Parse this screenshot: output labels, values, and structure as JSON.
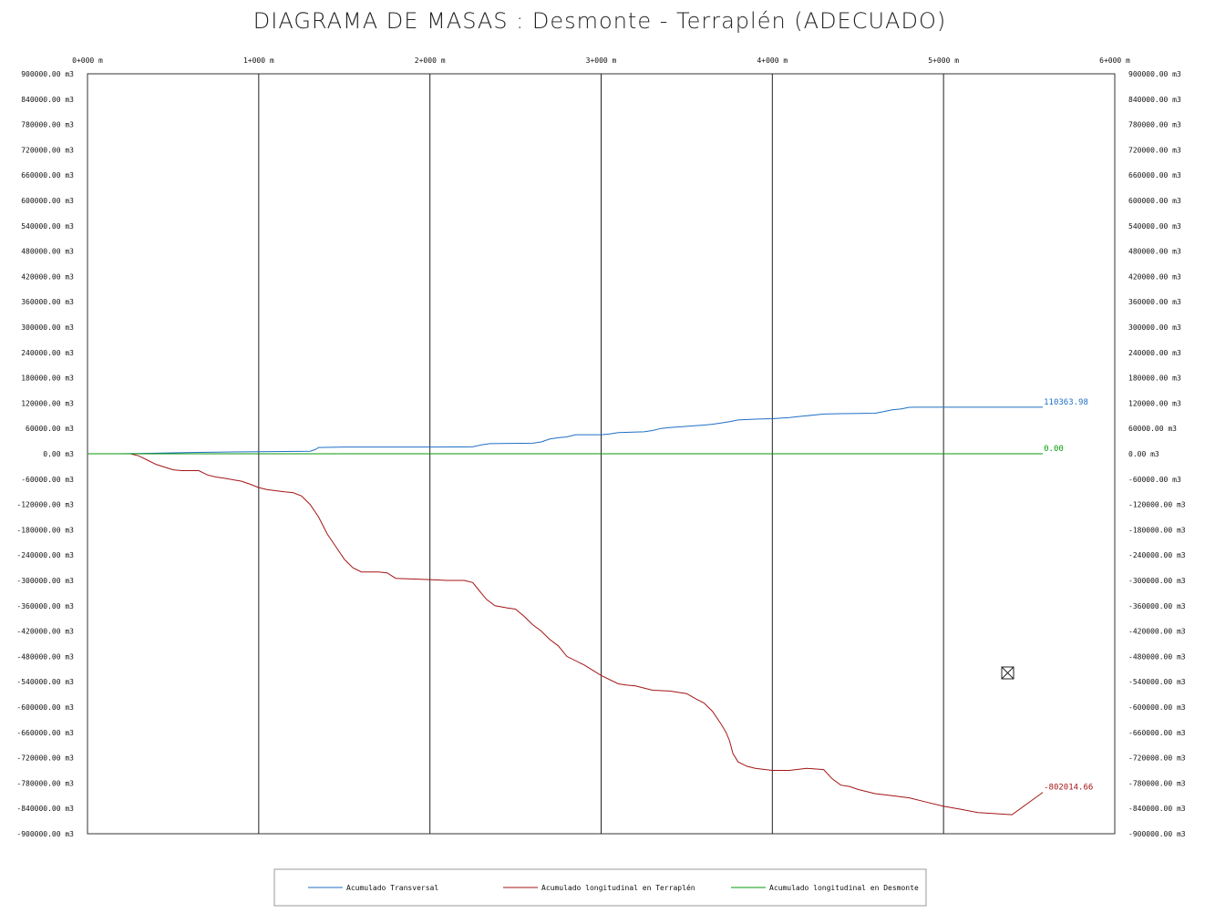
{
  "chart_data": {
    "type": "line",
    "title": "DIAGRAMA DE MASAS :  Desmonte - Terraplén (ADECUADO)",
    "x_ticks": [
      "0+000 m",
      "1+000 m",
      "2+000 m",
      "3+000 m",
      "4+000 m",
      "5+000 m",
      "6+000 m"
    ],
    "xlim": [
      0,
      6000
    ],
    "ylim": [
      -900000,
      900000
    ],
    "y_ticks_left": [
      "900000.00 m3",
      "840000.00 m3",
      "780000.00 m3",
      "720000.00 m3",
      "660000.00 m3",
      "600000.00 m3",
      "540000.00 m3",
      "480000.00 m3",
      "420000.00 m3",
      "360000.00 m3",
      "300000.00 m3",
      "240000.00 m3",
      "180000.00 m3",
      "120000.00 m3",
      "60000.00 m3",
      "0.00 m3",
      "-60000.00 m3",
      "-120000.00 m3",
      "-180000.00 m3",
      "-240000.00 m3",
      "-300000.00 m3",
      "-360000.00 m3",
      "-420000.00 m3",
      "-480000.00 m3",
      "-540000.00 m3",
      "-600000.00 m3",
      "-660000.00 m3",
      "-720000.00 m3",
      "-780000.00 m3",
      "-840000.00 m3",
      "-900000.00 m3"
    ],
    "y_ticks_right": [
      "900000.00 m3",
      "840000.00 m3",
      "780000.00 m3",
      "720000.00 m3",
      "660000.00 m3",
      "600000.00 m3",
      "540000.00 m3",
      "480000.00 m3",
      "420000.00 m3",
      "360000.00 m3",
      "300000.00 m3",
      "240000.00 m3",
      "180000.00 m3",
      "120000.00 m3",
      "60000.00 m3",
      "0.00 m3",
      "-60000.00 m3",
      "-120000.00 m3",
      "-180000.00 m3",
      "-240000.00 m3",
      "-300000.00 m3",
      "-360000.00 m3",
      "-420000.00 m3",
      "-480000.00 m3",
      "-540000.00 m3",
      "-600000.00 m3",
      "-660000.00 m3",
      "-720000.00 m3",
      "-780000.00 m3",
      "-840000.00 m3",
      "-900000.00 m3"
    ],
    "grid": "vertical",
    "legend_position": "bottom",
    "series": [
      {
        "name": "Acumulado Transversal",
        "color": "#1f6fc5",
        "end_label": "110363.98",
        "x": [
          0,
          150,
          300,
          400,
          600,
          1000,
          1300,
          1330,
          1350,
          1500,
          2000,
          2250,
          2300,
          2350,
          2600,
          2650,
          2700,
          2750,
          2800,
          2850,
          3000,
          3050,
          3100,
          3250,
          3300,
          3350,
          3400,
          3500,
          3600,
          3650,
          3700,
          3750,
          3800,
          3900,
          4000,
          4100,
          4200,
          4250,
          4300,
          4400,
          4600,
          4650,
          4700,
          4750,
          4800,
          4850,
          5000,
          5200,
          5400,
          5580
        ],
        "y": [
          0,
          0,
          500,
          1200,
          3000,
          5000,
          6000,
          10000,
          15000,
          16000,
          16000,
          16500,
          21000,
          24000,
          25000,
          28000,
          35000,
          38000,
          40000,
          45000,
          45000,
          47000,
          50000,
          52000,
          55000,
          60000,
          62000,
          65000,
          68000,
          70000,
          73000,
          76000,
          80000,
          82000,
          83000,
          86000,
          90000,
          92000,
          94000,
          95000,
          96000,
          100000,
          104000,
          106000,
          110000,
          110300,
          110363.98,
          110363.98,
          110363.98,
          110363.98
        ]
      },
      {
        "name": "Acumulado longitudinal en Terraplén",
        "color": "#a31515",
        "end_label": "-802014.66",
        "x": [
          0,
          250,
          300,
          350,
          400,
          500,
          550,
          650,
          700,
          750,
          800,
          900,
          950,
          1000,
          1050,
          1150,
          1200,
          1250,
          1300,
          1350,
          1400,
          1450,
          1500,
          1550,
          1600,
          1700,
          1750,
          1800,
          2000,
          2100,
          2200,
          2250,
          2270,
          2300,
          2330,
          2380,
          2450,
          2500,
          2550,
          2600,
          2650,
          2700,
          2750,
          2800,
          2900,
          3000,
          3100,
          3150,
          3200,
          3300,
          3400,
          3500,
          3550,
          3600,
          3650,
          3700,
          3730,
          3750,
          3770,
          3800,
          3850,
          3900,
          4000,
          4100,
          4200,
          4300,
          4350,
          4400,
          4450,
          4500,
          4600,
          4700,
          4800,
          4900,
          5000,
          5100,
          5200,
          5400,
          5580
        ],
        "y": [
          0,
          0,
          -5000,
          -15000,
          -25000,
          -38000,
          -40000,
          -40000,
          -50000,
          -55000,
          -58000,
          -65000,
          -72000,
          -80000,
          -85000,
          -90000,
          -92000,
          -100000,
          -120000,
          -150000,
          -190000,
          -220000,
          -250000,
          -270000,
          -280000,
          -280000,
          -282000,
          -295000,
          -298000,
          -300000,
          -300000,
          -305000,
          -315000,
          -330000,
          -345000,
          -360000,
          -365000,
          -368000,
          -385000,
          -405000,
          -420000,
          -440000,
          -455000,
          -480000,
          -500000,
          -525000,
          -545000,
          -548000,
          -550000,
          -560000,
          -562000,
          -568000,
          -580000,
          -590000,
          -610000,
          -640000,
          -660000,
          -680000,
          -710000,
          -730000,
          -740000,
          -745000,
          -750000,
          -750000,
          -745000,
          -748000,
          -770000,
          -785000,
          -788000,
          -795000,
          -805000,
          -810000,
          -815000,
          -825000,
          -835000,
          -842000,
          -850000,
          -855000,
          -802014.66
        ]
      },
      {
        "name": "Acumulado longitudinal en Desmonte",
        "color": "#0a9a0a",
        "end_label": "0.00",
        "x": [
          0,
          5580
        ],
        "y": [
          0,
          0
        ]
      }
    ]
  }
}
